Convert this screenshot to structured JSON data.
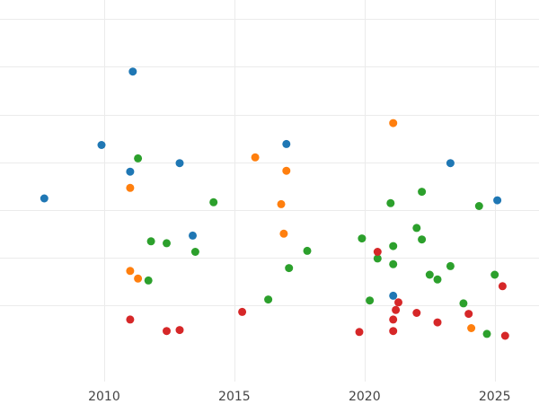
{
  "chart_data": {
    "type": "scatter",
    "title": "",
    "xlabel": "",
    "ylabel": "",
    "xlim": [
      2006,
      2026.7
    ],
    "ylim": [
      -3,
      37
    ],
    "x_ticks": [
      2010,
      2015,
      2020,
      2025
    ],
    "y_grid": [
      5,
      10,
      15,
      20,
      25,
      30,
      35
    ],
    "grid": true,
    "legend": "none",
    "series": [
      {
        "color": "#1f77b4",
        "points": [
          [
            2011.1,
            29.5
          ],
          [
            2009.9,
            21.8
          ],
          [
            2011.0,
            19.0
          ],
          [
            2012.9,
            19.9
          ],
          [
            2007.7,
            16.2
          ],
          [
            2013.4,
            12.3
          ],
          [
            2017.0,
            21.9
          ],
          [
            2023.3,
            19.9
          ],
          [
            2025.1,
            16.0
          ],
          [
            2021.1,
            6.0
          ]
        ]
      },
      {
        "color": "#ff7f0e",
        "points": [
          [
            2011.0,
            17.3
          ],
          [
            2011.0,
            8.6
          ],
          [
            2011.3,
            7.8
          ],
          [
            2015.8,
            20.5
          ],
          [
            2017.0,
            19.1
          ],
          [
            2016.8,
            15.6
          ],
          [
            2016.9,
            12.5
          ],
          [
            2021.1,
            24.1
          ],
          [
            2024.1,
            2.6
          ]
        ]
      },
      {
        "color": "#2ca02c",
        "points": [
          [
            2011.3,
            20.4
          ],
          [
            2011.8,
            11.7
          ],
          [
            2012.4,
            11.5
          ],
          [
            2011.7,
            7.6
          ],
          [
            2013.5,
            10.6
          ],
          [
            2014.2,
            15.8
          ],
          [
            2016.3,
            5.6
          ],
          [
            2017.1,
            8.9
          ],
          [
            2017.8,
            10.7
          ],
          [
            2019.9,
            12.0
          ],
          [
            2020.5,
            9.9
          ],
          [
            2021.0,
            15.7
          ],
          [
            2021.1,
            11.2
          ],
          [
            2021.1,
            9.3
          ],
          [
            2022.0,
            13.1
          ],
          [
            2022.2,
            11.9
          ],
          [
            2022.2,
            16.9
          ],
          [
            2022.5,
            8.2
          ],
          [
            2022.8,
            7.7
          ],
          [
            2023.3,
            9.1
          ],
          [
            2023.8,
            5.2
          ],
          [
            2024.4,
            15.4
          ],
          [
            2024.7,
            2.0
          ],
          [
            2025.0,
            8.2
          ],
          [
            2020.2,
            5.5
          ]
        ]
      },
      {
        "color": "#d62728",
        "points": [
          [
            2011.0,
            3.5
          ],
          [
            2012.4,
            2.3
          ],
          [
            2012.9,
            2.4
          ],
          [
            2015.3,
            4.3
          ],
          [
            2019.8,
            2.2
          ],
          [
            2020.5,
            10.6
          ],
          [
            2021.1,
            3.5
          ],
          [
            2021.1,
            2.3
          ],
          [
            2021.2,
            4.5
          ],
          [
            2021.3,
            5.3
          ],
          [
            2022.0,
            4.2
          ],
          [
            2022.8,
            3.2
          ],
          [
            2024.0,
            4.1
          ],
          [
            2025.3,
            7.0
          ],
          [
            2025.4,
            1.8
          ]
        ]
      }
    ]
  }
}
